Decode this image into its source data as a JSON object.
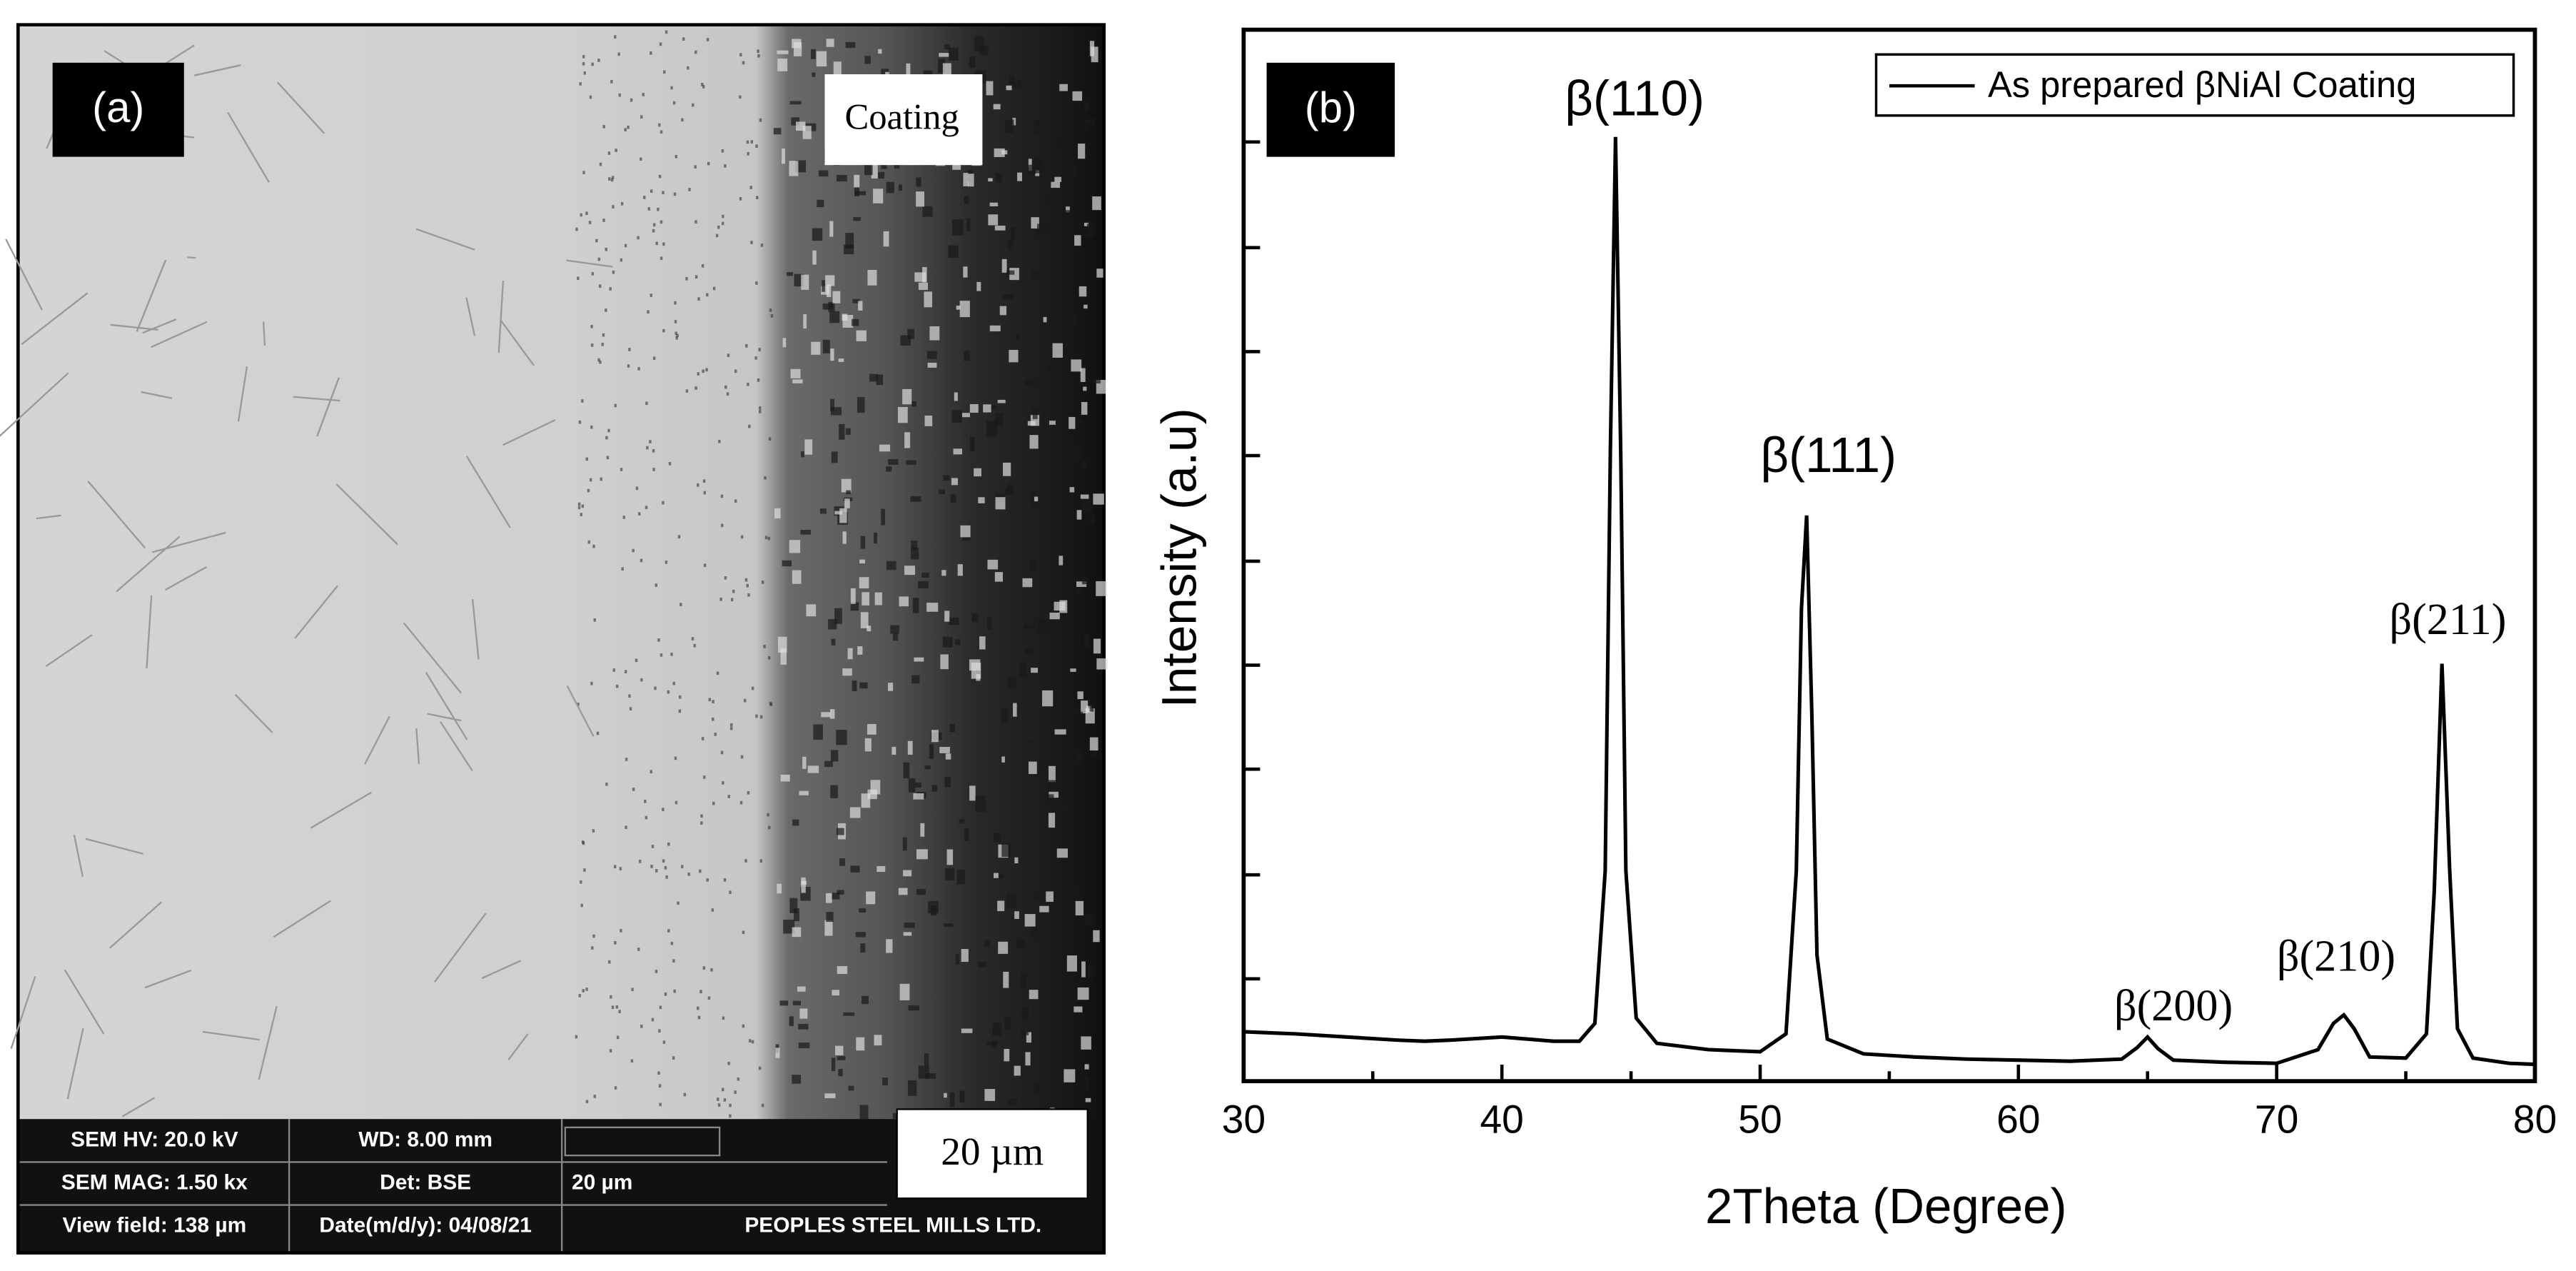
{
  "panel_a": {
    "label": "(a)",
    "coating_label": "Coating",
    "scale_label": "20 µm",
    "info": {
      "hv": "SEM HV: 20.0 kV",
      "wd": "WD: 8.00 mm",
      "mag": "SEM MAG: 1.50 kx",
      "det": "Det: BSE",
      "bar": "20 µm",
      "view": "View field: 138 µm",
      "date": "Date(m/d/y): 04/08/21",
      "company": "PEOPLES STEEL MILLS LTD."
    }
  },
  "chart_data": {
    "type": "line",
    "panel_label": "(b)",
    "xlabel": "2Theta (Degree)",
    "ylabel": "Intensity (a.u)",
    "x": [
      30,
      32,
      34,
      36,
      37,
      38,
      40,
      42,
      43,
      43.6,
      44.0,
      44.2,
      44.4,
      44.6,
      44.8,
      45.2,
      46,
      48,
      50,
      51,
      51.4,
      51.6,
      51.8,
      52.0,
      52.2,
      52.6,
      54,
      56,
      58,
      60,
      62,
      64,
      64.6,
      65,
      65.4,
      66,
      68,
      70,
      71.6,
      72.2,
      72.6,
      73.0,
      73.6,
      75,
      75.8,
      76.1,
      76.4,
      76.7,
      77.0,
      77.6,
      79,
      80
    ],
    "series": [
      {
        "name": "As prepared βNiAl Coating",
        "color": "#000000",
        "values": [
          4.7,
          4.5,
          4.2,
          3.9,
          3.8,
          3.9,
          4.2,
          3.8,
          3.8,
          5.5,
          20,
          60,
          89.8,
          60,
          20,
          6,
          3.6,
          3.0,
          2.8,
          4.5,
          20,
          45,
          53.8,
          35,
          12,
          4,
          2.6,
          2.3,
          2.1,
          2.0,
          1.9,
          2.1,
          3.2,
          4.2,
          3.1,
          2.0,
          1.8,
          1.7,
          3.0,
          5.5,
          6.3,
          5.0,
          2.3,
          2.2,
          4.5,
          18,
          39.7,
          20,
          5,
          2.2,
          1.7,
          1.6
        ]
      }
    ],
    "xlim": [
      30,
      80
    ],
    "xticks": [
      30,
      40,
      50,
      60,
      70,
      80
    ],
    "ylim": [
      0,
      100
    ],
    "legend": "upper right",
    "annotations": [
      "β(110)",
      "β(111)",
      "β(200)",
      "β(210)",
      "β(211)"
    ]
  }
}
